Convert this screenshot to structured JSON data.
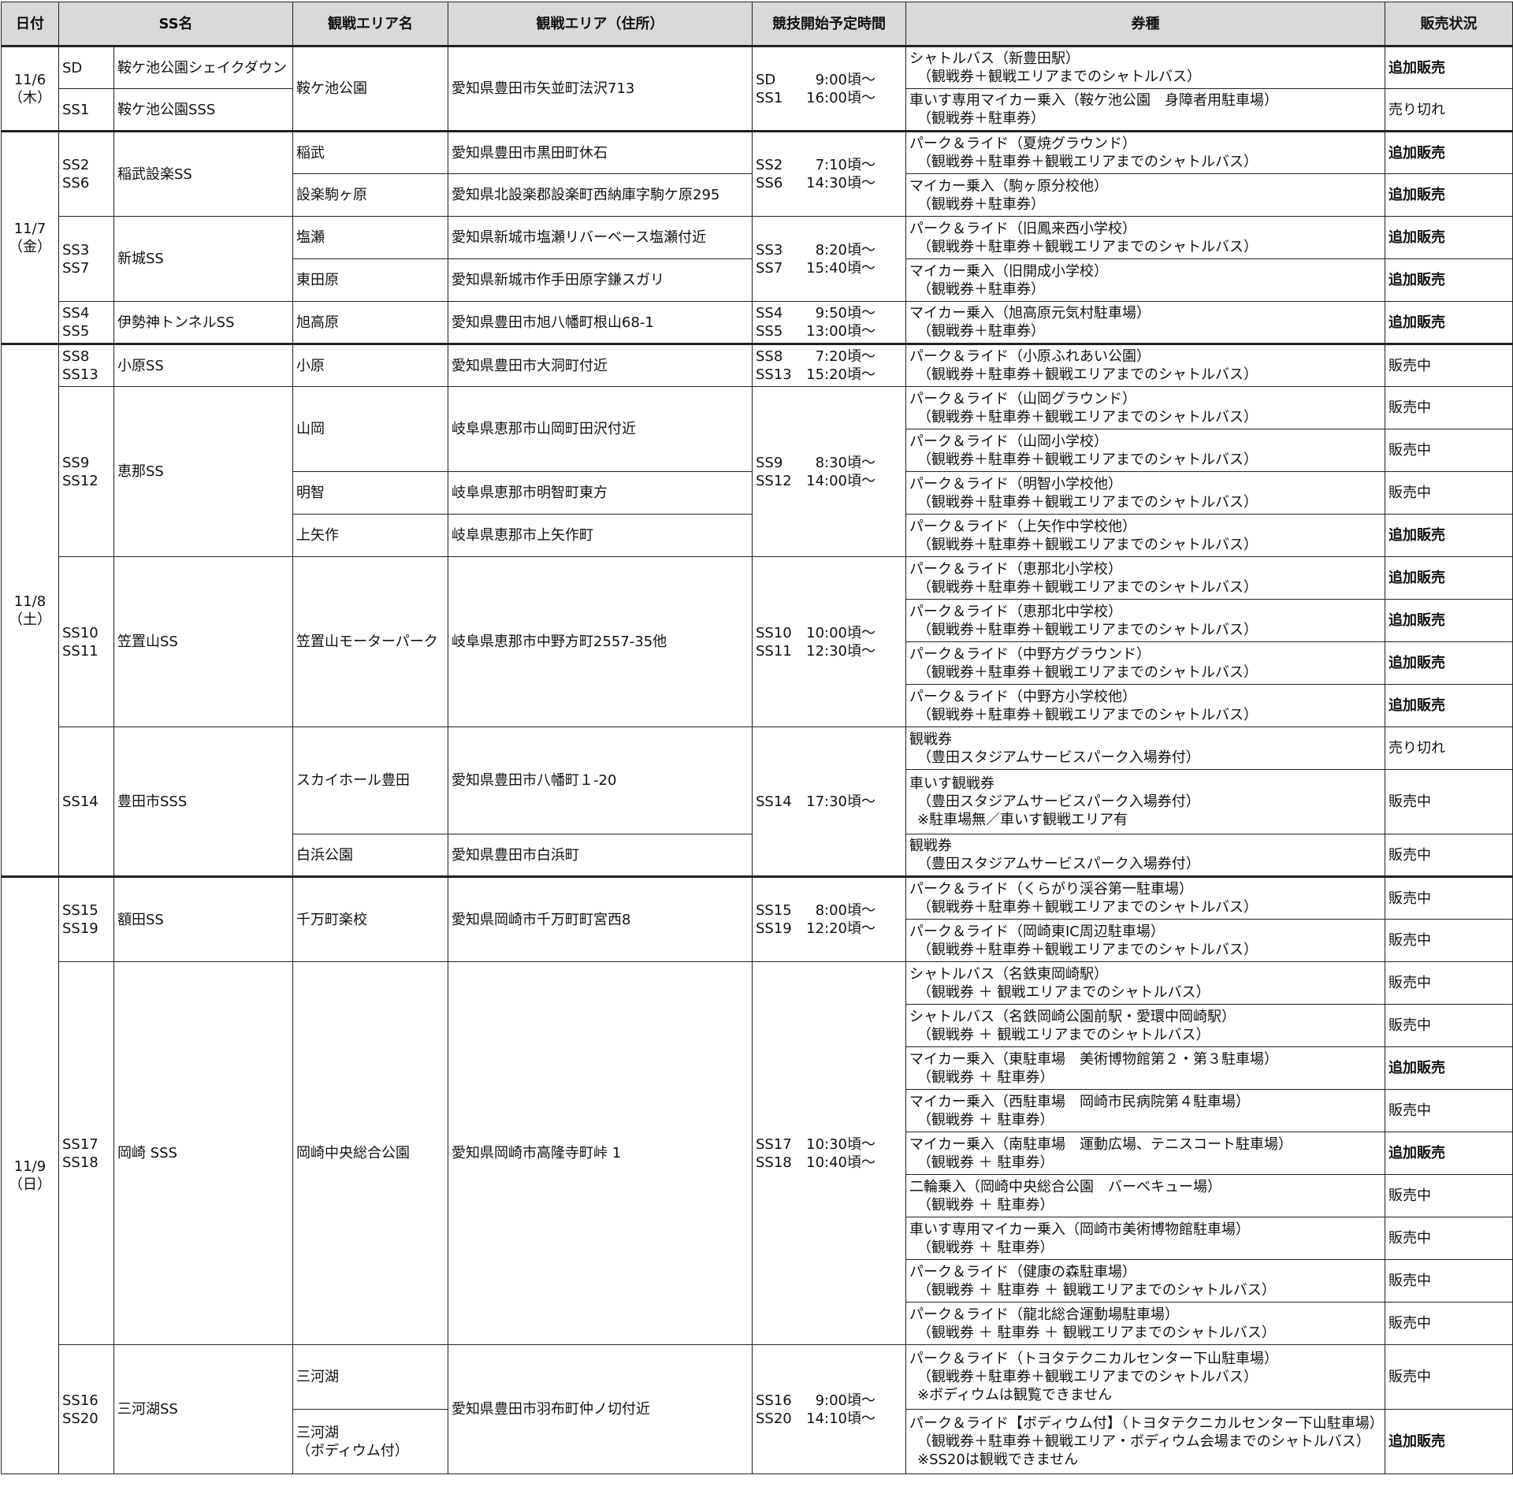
{
  "header": [
    "日付",
    "SS名",
    "観戦エリア名",
    "観戦エリア（住所）",
    "競技開始予定時間",
    "券種",
    "販売状況"
  ],
  "dates": [
    {
      "date": "11/6",
      "day": "（木）"
    },
    {
      "date": "11/7",
      "day": "（金）"
    },
    {
      "date": "11/8",
      "day": "（土）"
    },
    {
      "date": "11/9",
      "day": "（日）"
    }
  ],
  "ss_codes": [
    [
      "SD"
    ],
    [
      "SS1"
    ],
    [
      "SS2",
      "SS6"
    ],
    [
      "SS3",
      "SS7"
    ],
    [
      "SS4",
      "SS5"
    ],
    [
      "SS8",
      "SS13"
    ],
    [
      "SS9",
      "SS12"
    ],
    [
      "SS10",
      "SS11"
    ],
    [
      "SS14"
    ],
    [
      "SS15",
      "SS19"
    ],
    [
      "SS17",
      "SS18"
    ],
    [
      "SS16",
      "SS20"
    ]
  ],
  "ss_names": [
    "鞍ケ池公園シェイクダウン",
    "鞍ケ池公園SSS",
    "稲武設楽SS",
    "新城SS",
    "伊勢神トンネルSS",
    "小原SS",
    "恵那SS",
    "笠置山SS",
    "豊田市SSS",
    "額田SS",
    "岡崎 SSS",
    "三河湖SS"
  ],
  "areas": [
    [
      "鞍ケ池公園"
    ],
    [
      "稲武"
    ],
    [
      "設楽駒ヶ原"
    ],
    [
      "塩瀬"
    ],
    [
      "東田原"
    ],
    [
      "旭高原"
    ],
    [
      "小原"
    ],
    [
      "山岡"
    ],
    [
      "明智"
    ],
    [
      "上矢作"
    ],
    [
      "笠置山モーターパーク"
    ],
    [
      "スカイホール豊田"
    ],
    [
      "白浜公園"
    ],
    [
      "千万町楽校"
    ],
    [
      "岡崎中央総合公園"
    ],
    [
      "三河湖"
    ],
    [
      "三河湖",
      "（ボディウム付）"
    ]
  ],
  "addresses": [
    "愛知県豊田市矢並町法沢713",
    "愛知県豊田市黒田町休石",
    "愛知県北設楽郡設楽町西納庫字駒ケ原295",
    "愛知県新城市塩瀬リバーベース塩瀬付近",
    "愛知県新城市作手田原字鎌スガリ",
    "愛知県豊田市旭八幡町根山68-1",
    "愛知県豊田市大洞町付近",
    "岐阜県恵那市山岡町田沢付近",
    "岐阜県恵那市明智町東方",
    "岐阜県恵那市上矢作町",
    "岐阜県恵那市中野方町2557-35他",
    "愛知県豊田市八幡町１-20",
    "愛知県豊田市白浜町",
    "愛知県岡崎市千万町町宮西8",
    "愛知県岡崎市高隆寺町峠 1",
    "愛知県豊田市羽布町仲ノ切付近"
  ],
  "times": [
    [
      {
        "code": "SD",
        "time": "9:00頃～"
      },
      {
        "code": "SS1",
        "time": "16:00頃～"
      }
    ],
    [
      {
        "code": "SS2",
        "time": "7:10頃～"
      },
      {
        "code": "SS6",
        "time": "14:30頃～"
      }
    ],
    [
      {
        "code": "SS3",
        "time": "8:20頃～"
      },
      {
        "code": "SS7",
        "time": "15:40頃～"
      }
    ],
    [
      {
        "code": "SS4",
        "time": "9:50頃～"
      },
      {
        "code": "SS5",
        "time": "13:00頃～"
      }
    ],
    [
      {
        "code": "SS8",
        "time": "7:20頃～"
      },
      {
        "code": "SS13",
        "time": "15:20頃～"
      }
    ],
    [
      {
        "code": "SS9",
        "time": "8:30頃～"
      },
      {
        "code": "SS12",
        "time": "14:00頃～"
      }
    ],
    [
      {
        "code": "SS10",
        "time": "10:00頃～"
      },
      {
        "code": "SS11",
        "time": "12:30頃～"
      }
    ],
    [
      {
        "code": "SS14",
        "time": "17:30頃～"
      }
    ],
    [
      {
        "code": "SS15",
        "time": "8:00頃～"
      },
      {
        "code": "SS19",
        "time": "12:20頃～"
      }
    ],
    [
      {
        "code": "SS17",
        "time": "10:30頃～"
      },
      {
        "code": "SS18",
        "time": "10:40頃～"
      }
    ],
    [
      {
        "code": "SS16",
        "time": "9:00頃～"
      },
      {
        "code": "SS20",
        "time": "14:10頃～"
      }
    ]
  ],
  "tickets": [
    {
      "lines": [
        "シャトルバス（新豊田駅）",
        "（観戦券＋観戦エリアまでのシャトルバス）"
      ],
      "status": "追加販売"
    },
    {
      "lines": [
        "車いす専用マイカー乗入（鞍ケ池公園　身障者用駐車場）",
        "（観戦券＋駐車券）"
      ],
      "status": "売り切れ"
    },
    {
      "lines": [
        "パーク＆ライド（夏焼グラウンド）",
        "（観戦券＋駐車券＋観戦エリアまでのシャトルバス）"
      ],
      "status": "追加販売"
    },
    {
      "lines": [
        "マイカー乗入（駒ヶ原分校他）",
        "（観戦券＋駐車券）"
      ],
      "status": "追加販売"
    },
    {
      "lines": [
        "パーク＆ライド（旧鳳来西小学校）",
        "（観戦券＋駐車券＋観戦エリアまでのシャトルバス）"
      ],
      "status": "追加販売"
    },
    {
      "lines": [
        "マイカー乗入（旧開成小学校）",
        "（観戦券＋駐車券）"
      ],
      "status": "追加販売"
    },
    {
      "lines": [
        "マイカー乗入（旭高原元気村駐車場）",
        "（観戦券＋駐車券）"
      ],
      "status": "追加販売"
    },
    {
      "lines": [
        "パーク＆ライド（小原ふれあい公園）",
        "（観戦券＋駐車券＋観戦エリアまでのシャトルバス）"
      ],
      "status": "販売中"
    },
    {
      "lines": [
        "パーク＆ライド（山岡グラウンド）",
        "（観戦券＋駐車券＋観戦エリアまでのシャトルバス）"
      ],
      "status": "販売中"
    },
    {
      "lines": [
        "パーク＆ライド（山岡小学校）",
        "（観戦券＋駐車券＋観戦エリアまでのシャトルバス）"
      ],
      "status": "販売中"
    },
    {
      "lines": [
        "パーク＆ライド（明智小学校他）",
        "（観戦券＋駐車券＋観戦エリアまでのシャトルバス）"
      ],
      "status": "販売中"
    },
    {
      "lines": [
        "パーク＆ライド（上矢作中学校他）",
        "（観戦券＋駐車券＋観戦エリアまでのシャトルバス）"
      ],
      "status": "追加販売"
    },
    {
      "lines": [
        "パーク＆ライド（恵那北小学校）",
        "（観戦券＋駐車券＋観戦エリアまでのシャトルバス）"
      ],
      "status": "追加販売"
    },
    {
      "lines": [
        "パーク＆ライド（恵那北中学校）",
        "（観戦券＋駐車券＋観戦エリアまでのシャトルバス）"
      ],
      "status": "追加販売"
    },
    {
      "lines": [
        "パーク＆ライド（中野方グラウンド）",
        "（観戦券＋駐車券＋観戦エリアまでのシャトルバス）"
      ],
      "status": "追加販売"
    },
    {
      "lines": [
        "パーク＆ライド（中野方小学校他）",
        "（観戦券＋駐車券＋観戦エリアまでのシャトルバス）"
      ],
      "status": "追加販売"
    },
    {
      "lines": [
        "観戦券",
        "（豊田スタジアムサービスパーク入場券付）"
      ],
      "status": "売り切れ"
    },
    {
      "lines": [
        "車いす観戦券",
        "（豊田スタジアムサービスパーク入場券付）",
        "※駐車場無／車いす観戦エリア有"
      ],
      "status": "販売中"
    },
    {
      "lines": [
        "観戦券",
        "（豊田スタジアムサービスパーク入場券付）"
      ],
      "status": "販売中"
    },
    {
      "lines": [
        "パーク＆ライド（くらがり渓谷第一駐車場）",
        "（観戦券＋駐車券＋観戦エリアまでのシャトルバス）"
      ],
      "status": "販売中"
    },
    {
      "lines": [
        "パーク＆ライド（岡崎東IC周辺駐車場）",
        "（観戦券＋駐車券＋観戦エリアまでのシャトルバス）"
      ],
      "status": "販売中"
    },
    {
      "lines": [
        "シャトルバス（名鉄東岡崎駅）",
        "（観戦券 ＋ 観戦エリアまでのシャトルバス）"
      ],
      "status": "販売中"
    },
    {
      "lines": [
        "シャトルバス（名鉄岡崎公園前駅・愛環中岡崎駅）",
        "（観戦券 ＋ 観戦エリアまでのシャトルバス）"
      ],
      "status": "販売中"
    },
    {
      "lines": [
        "マイカー乗入（東駐車場　美術博物館第２・第３駐車場）",
        "（観戦券 ＋ 駐車券）"
      ],
      "status": "追加販売"
    },
    {
      "lines": [
        "マイカー乗入（西駐車場　岡崎市民病院第４駐車場）",
        "（観戦券 ＋ 駐車券）"
      ],
      "status": "販売中"
    },
    {
      "lines": [
        "マイカー乗入（南駐車場　運動広場、テニスコート駐車場）",
        "（観戦券 ＋ 駐車券）"
      ],
      "status": "追加販売"
    },
    {
      "lines": [
        "二輪乗入（岡崎中央総合公園　バーベキュー場）",
        "（観戦券 ＋ 駐車券）"
      ],
      "status": "販売中"
    },
    {
      "lines": [
        "車いす専用マイカー乗入（岡崎市美術博物館駐車場）",
        "（観戦券 ＋ 駐車券）"
      ],
      "status": "販売中"
    },
    {
      "lines": [
        "パーク＆ライド（健康の森駐車場）",
        "（観戦券 ＋ 駐車券 ＋ 観戦エリアまでのシャトルバス）"
      ],
      "status": "販売中"
    },
    {
      "lines": [
        "パーク＆ライド（龍北総合運動場駐車場）",
        "（観戦券 ＋ 駐車券 ＋ 観戦エリアまでのシャトルバス）"
      ],
      "status": "販売中"
    },
    {
      "lines": [
        "パーク＆ライド（トヨタテクニカルセンター下山駐車場）",
        "（観戦券＋駐車券＋観戦エリアまでのシャトルバス）",
        "※ボディウムは観覧できません"
      ],
      "status": "販売中"
    },
    {
      "lines": [
        "パーク＆ライド【ボディウム付】（トヨタテクニカルセンター下山駐車場）",
        "（観戦券＋駐車券＋観戦エリア・ボディウム会場までのシャトルバス）",
        "※SS20は観戦できません"
      ],
      "status": "追加販売"
    }
  ]
}
